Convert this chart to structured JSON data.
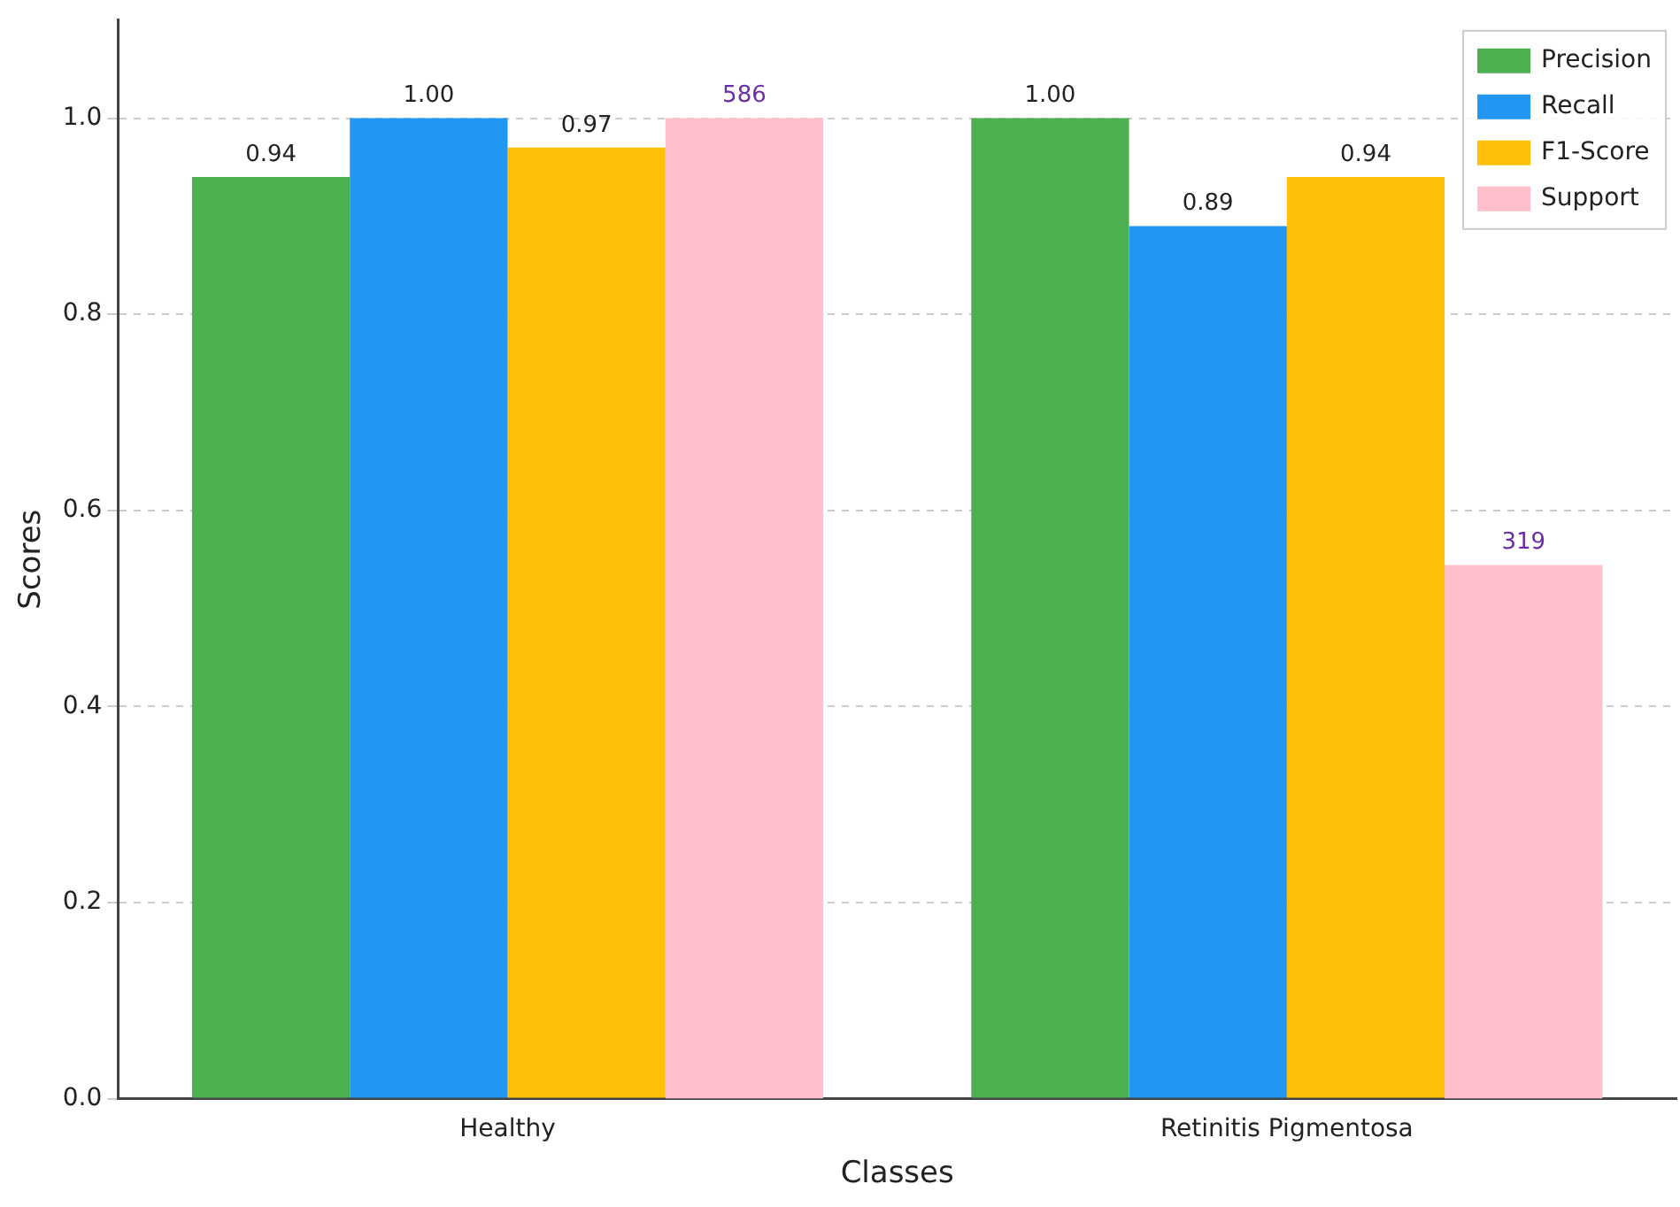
{
  "chart_data": {
    "type": "bar",
    "xlabel": "Classes",
    "ylabel": "Scores",
    "categories": [
      "Healthy",
      "Retinitis Pigmentosa"
    ],
    "series": [
      {
        "name": "Precision",
        "color": "#4caf50",
        "values": [
          0.94,
          1.0
        ],
        "value_labels": [
          "0.94",
          "1.00"
        ]
      },
      {
        "name": "Recall",
        "color": "#2196f3",
        "values": [
          1.0,
          0.89
        ],
        "value_labels": [
          "1.00",
          "0.89"
        ]
      },
      {
        "name": "F1-Score",
        "color": "#ffc107",
        "values": [
          0.97,
          0.94
        ],
        "value_labels": [
          "0.97",
          "0.94"
        ]
      },
      {
        "name": "Support",
        "color": "#ffc0cb",
        "values": [
          586,
          319
        ],
        "value_labels": [
          "586",
          "319"
        ],
        "axis": "y2"
      }
    ],
    "ylim": [
      0,
      1.1
    ],
    "y2lim": [
      0,
      644.6
    ],
    "yticks": [
      {
        "value": 0,
        "label": "0.0"
      },
      {
        "value": 0.2,
        "label": "0.2"
      },
      {
        "value": 0.4,
        "label": "0.4"
      },
      {
        "value": 0.6,
        "label": "0.6"
      },
      {
        "value": 0.8,
        "label": "0.8"
      },
      {
        "value": 1.0,
        "label": "1.0"
      }
    ],
    "grid": "y",
    "legend": "top right"
  }
}
